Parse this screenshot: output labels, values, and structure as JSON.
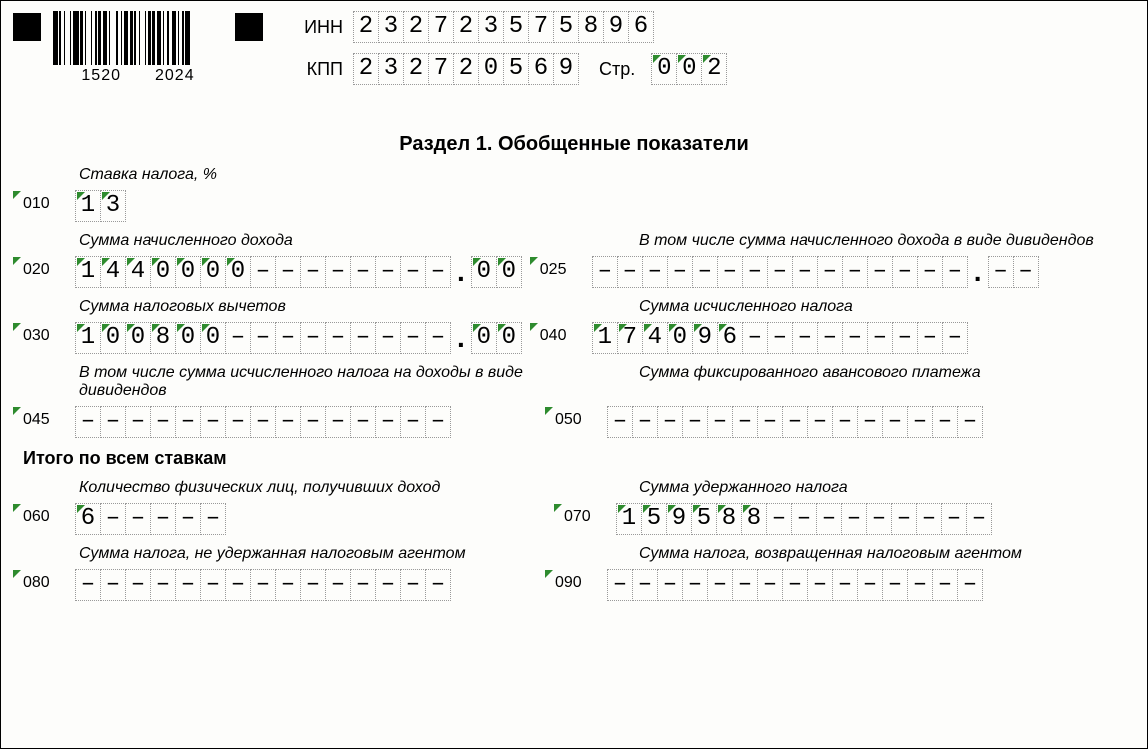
{
  "barcode_nums": [
    "1520",
    "2024"
  ],
  "header": {
    "inn_label": "ИНН",
    "inn": [
      "2",
      "3",
      "2",
      "7",
      "2",
      "3",
      "5",
      "7",
      "5",
      "8",
      "9",
      "6"
    ],
    "kpp_label": "КПП",
    "kpp": [
      "2",
      "3",
      "2",
      "7",
      "2",
      "0",
      "5",
      "6",
      "9"
    ],
    "page_label": "Стр.",
    "page": [
      "0",
      "0",
      "2"
    ]
  },
  "section_title": "Раздел 1. Обобщенные показатели",
  "labels": {
    "rate": "Ставка налога, %",
    "income": "Сумма начисленного дохода",
    "income_div": "В том числе сумма начисленного дохода в виде дивидендов",
    "deductions": "Сумма налоговых вычетов",
    "tax_calc": "Сумма исчисленного налога",
    "tax_calc_div": "В том числе сумма исчисленного налога на доходы в виде дивидендов",
    "advance": "Сумма фиксированного авансового платежа",
    "total_heading": "Итого по всем ставкам",
    "persons": "Количество физических лиц, получивших доход",
    "tax_withheld": "Сумма удержанного налога",
    "tax_not_withheld": "Сумма налога, не удержанная налоговым агентом",
    "tax_returned": "Сумма налога, возвращенная налоговым агентом"
  },
  "codes": {
    "c010": "010",
    "c020": "020",
    "c025": "025",
    "c030": "030",
    "c040": "040",
    "c045": "045",
    "c050": "050",
    "c060": "060",
    "c070": "070",
    "c080": "080",
    "c090": "090"
  },
  "fields": {
    "f010": [
      "1",
      "3"
    ],
    "f020_int": [
      "1",
      "4",
      "4",
      "0",
      "0",
      "0",
      "0",
      "–",
      "–",
      "–",
      "–",
      "–",
      "–",
      "–",
      "–"
    ],
    "f020_dec": [
      "0",
      "0"
    ],
    "f025_int": [
      "–",
      "–",
      "–",
      "–",
      "–",
      "–",
      "–",
      "–",
      "–",
      "–",
      "–",
      "–",
      "–",
      "–",
      "–"
    ],
    "f025_dec": [
      "–",
      "–"
    ],
    "f030_int": [
      "1",
      "0",
      "0",
      "8",
      "0",
      "0",
      "–",
      "–",
      "–",
      "–",
      "–",
      "–",
      "–",
      "–",
      "–"
    ],
    "f030_dec": [
      "0",
      "0"
    ],
    "f040": [
      "1",
      "7",
      "4",
      "0",
      "9",
      "6",
      "–",
      "–",
      "–",
      "–",
      "–",
      "–",
      "–",
      "–",
      "–"
    ],
    "f045": [
      "–",
      "–",
      "–",
      "–",
      "–",
      "–",
      "–",
      "–",
      "–",
      "–",
      "–",
      "–",
      "–",
      "–",
      "–"
    ],
    "f050": [
      "–",
      "–",
      "–",
      "–",
      "–",
      "–",
      "–",
      "–",
      "–",
      "–",
      "–",
      "–",
      "–",
      "–",
      "–"
    ],
    "f060": [
      "6",
      "–",
      "–",
      "–",
      "–",
      "–"
    ],
    "f070": [
      "1",
      "5",
      "9",
      "5",
      "8",
      "8",
      "–",
      "–",
      "–",
      "–",
      "–",
      "–",
      "–",
      "–",
      "–"
    ],
    "f080": [
      "–",
      "–",
      "–",
      "–",
      "–",
      "–",
      "–",
      "–",
      "–",
      "–",
      "–",
      "–",
      "–",
      "–",
      "–"
    ],
    "f090": [
      "–",
      "–",
      "–",
      "–",
      "–",
      "–",
      "–",
      "–",
      "–",
      "–",
      "–",
      "–",
      "–",
      "–",
      "–"
    ]
  },
  "colors": {
    "tick": "#2e8b2e",
    "cell_border": "#999999",
    "text": "#000000",
    "bg": "#fdfdfb"
  }
}
